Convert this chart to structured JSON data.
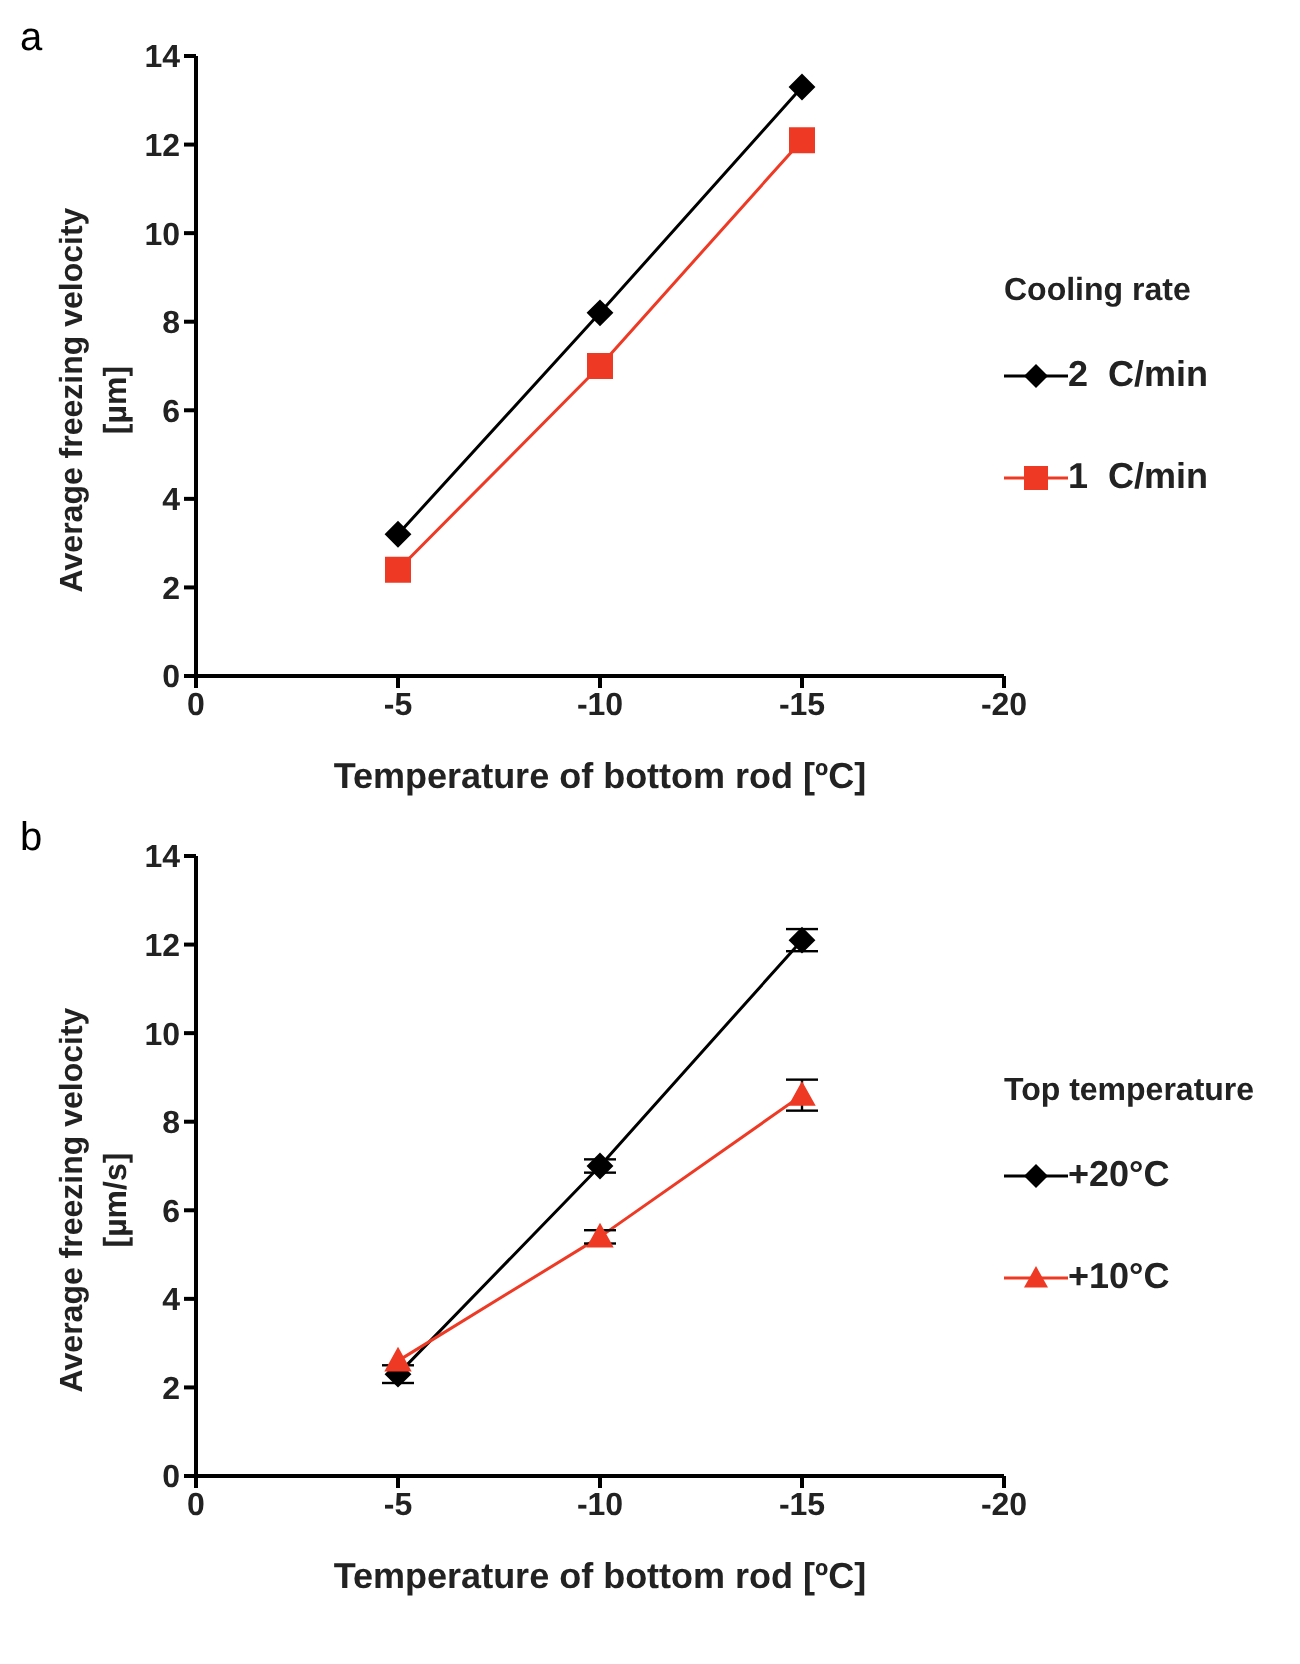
{
  "chart_data": [
    {
      "type": "line",
      "title": "a",
      "xlabel": "Temperature of bottom rod [ºC]",
      "ylabel": "Average freezing velocity [µm]",
      "legend_title": "Cooling rate",
      "x": [
        -5,
        -10,
        -15
      ],
      "xlim": [
        0,
        -20
      ],
      "xticks": [
        0,
        -5,
        -10,
        -15,
        -20
      ],
      "ylim": [
        0,
        14
      ],
      "yticks": [
        0,
        2,
        4,
        6,
        8,
        10,
        12,
        14
      ],
      "legend": "right",
      "grid": false,
      "series": [
        {
          "name": "2  C/min",
          "color": "#000000",
          "marker": "diamond",
          "values": [
            3.2,
            8.2,
            13.3
          ]
        },
        {
          "name": "1  C/min",
          "color": "#ee3a24",
          "marker": "square",
          "values": [
            2.4,
            7.0,
            12.1
          ]
        }
      ]
    },
    {
      "type": "line",
      "title": "b",
      "xlabel": "Temperature of bottom rod [ºC]",
      "ylabel": "Average freezing velocity [µm/s]",
      "legend_title": "Top temperature",
      "x": [
        -5,
        -10,
        -15
      ],
      "xlim": [
        0,
        -20
      ],
      "xticks": [
        0,
        -5,
        -10,
        -15,
        -20
      ],
      "ylim": [
        0,
        14
      ],
      "yticks": [
        0,
        2,
        4,
        6,
        8,
        10,
        12,
        14
      ],
      "legend": "right",
      "grid": false,
      "series": [
        {
          "name": "+20°C",
          "color": "#000000",
          "marker": "diamond",
          "values": [
            2.3,
            7.0,
            12.1
          ],
          "errors": [
            0.2,
            0.15,
            0.25
          ]
        },
        {
          "name": "+10°C",
          "color": "#ee3a24",
          "marker": "triangle",
          "values": [
            2.6,
            5.4,
            8.6
          ],
          "errors": [
            null,
            0.15,
            0.35
          ]
        }
      ]
    }
  ]
}
